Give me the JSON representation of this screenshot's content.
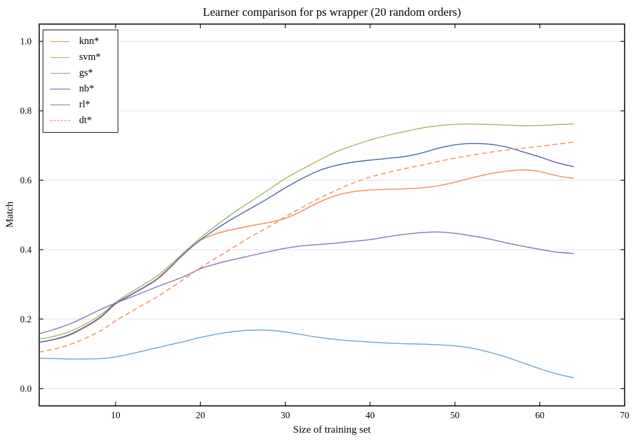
{
  "figure": {
    "background": "#ffffff",
    "spine_color": "#111111",
    "grid_color": "#e3e3e3"
  },
  "chart_data": {
    "type": "line",
    "title": "Learner comparison for ps wrapper (20 random orders)",
    "xlabel": "Size of training set",
    "ylabel": "Match",
    "xlim": [
      1,
      70
    ],
    "ylim": [
      -0.05,
      1.05
    ],
    "grid": "horizontal-only",
    "legend_position": "upper left",
    "x_ticks": [
      10,
      20,
      30,
      40,
      50,
      60,
      70
    ],
    "x_tick_labels": [
      "10",
      "20",
      "30",
      "40",
      "50",
      "60",
      "70"
    ],
    "y_ticks": [
      0.0,
      0.2,
      0.4,
      0.6,
      0.8,
      1.0
    ],
    "y_tick_labels": [
      "0.0",
      "0.2",
      "0.4",
      "0.6",
      "0.8",
      "1.0"
    ],
    "x": [
      1,
      3,
      5,
      8,
      10,
      12,
      15,
      18,
      20,
      22,
      24,
      26,
      28,
      30,
      32,
      34,
      36,
      38,
      40,
      42,
      44,
      46,
      48,
      50,
      52,
      54,
      56,
      58,
      60,
      62,
      64
    ],
    "series": [
      {
        "id": "knn",
        "name": "knn*",
        "color": "#ee8a4c",
        "style": "solid",
        "values": [
          0.133,
          0.142,
          0.158,
          0.2,
          0.243,
          0.272,
          0.316,
          0.386,
          0.427,
          0.447,
          0.459,
          0.469,
          0.478,
          0.49,
          0.512,
          0.537,
          0.556,
          0.567,
          0.572,
          0.574,
          0.575,
          0.578,
          0.584,
          0.594,
          0.607,
          0.618,
          0.626,
          0.63,
          0.625,
          0.613,
          0.605
        ]
      },
      {
        "id": "svm",
        "name": "svm*",
        "color": "#a9b464",
        "style": "solid",
        "values": [
          0.142,
          0.152,
          0.168,
          0.208,
          0.248,
          0.28,
          0.326,
          0.391,
          0.434,
          0.472,
          0.508,
          0.54,
          0.572,
          0.605,
          0.632,
          0.658,
          0.682,
          0.7,
          0.716,
          0.729,
          0.74,
          0.75,
          0.757,
          0.761,
          0.762,
          0.761,
          0.759,
          0.757,
          0.758,
          0.76,
          0.763
        ]
      },
      {
        "id": "gs",
        "name": "gs*",
        "color": "#6da4cf",
        "style": "solid",
        "values": [
          0.087,
          0.086,
          0.085,
          0.086,
          0.091,
          0.101,
          0.118,
          0.135,
          0.147,
          0.157,
          0.164,
          0.168,
          0.168,
          0.163,
          0.155,
          0.147,
          0.141,
          0.137,
          0.134,
          0.131,
          0.129,
          0.128,
          0.126,
          0.123,
          0.116,
          0.105,
          0.091,
          0.074,
          0.057,
          0.042,
          0.031
        ]
      },
      {
        "id": "nb",
        "name": "nb*",
        "color": "#4566ad",
        "style": "solid",
        "values": [
          0.133,
          0.143,
          0.16,
          0.202,
          0.245,
          0.273,
          0.318,
          0.387,
          0.428,
          0.462,
          0.492,
          0.52,
          0.548,
          0.578,
          0.605,
          0.628,
          0.643,
          0.652,
          0.658,
          0.663,
          0.668,
          0.678,
          0.692,
          0.702,
          0.706,
          0.704,
          0.696,
          0.682,
          0.667,
          0.651,
          0.639
        ]
      },
      {
        "id": "rl",
        "name": "rl*",
        "color": "#8476b5",
        "style": "solid",
        "values": [
          0.158,
          0.172,
          0.19,
          0.225,
          0.246,
          0.265,
          0.294,
          0.322,
          0.345,
          0.36,
          0.372,
          0.383,
          0.394,
          0.404,
          0.411,
          0.415,
          0.419,
          0.424,
          0.429,
          0.437,
          0.444,
          0.449,
          0.451,
          0.447,
          0.44,
          0.431,
          0.42,
          0.41,
          0.401,
          0.393,
          0.389
        ]
      },
      {
        "id": "dt",
        "name": "dt*",
        "color": "#ee8a4c",
        "style": "dashed",
        "values": [
          0.105,
          0.115,
          0.13,
          0.163,
          0.195,
          0.224,
          0.266,
          0.314,
          0.348,
          0.378,
          0.408,
          0.438,
          0.465,
          0.494,
          0.522,
          0.548,
          0.571,
          0.592,
          0.609,
          0.622,
          0.633,
          0.643,
          0.654,
          0.664,
          0.672,
          0.68,
          0.687,
          0.692,
          0.698,
          0.704,
          0.71
        ]
      }
    ]
  }
}
